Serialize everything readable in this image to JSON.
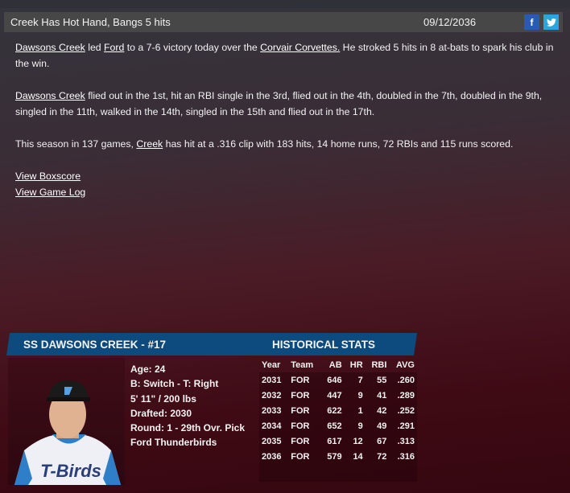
{
  "article": {
    "title": "Creek Has Hot Hand, Bangs 5 hits",
    "date": "09/12/2036",
    "p1": {
      "player": "Dawsons Creek",
      "t1": " led ",
      "team": "Ford",
      "t2": " to a 7-6 victory today over the ",
      "opp": "Corvair Corvettes.",
      "t3": " He stroked 5 hits in 8 at-bats to spark his club in the win."
    },
    "p2": {
      "player": "Dawsons Creek",
      "t1": " flied out in the 1st, hit an RBI single in the 3rd, flied out in the 4th, doubled in the 7th, doubled in the 9th, singled in the 11th, walked in the 14th, singled in the 15th and flied out in the 17th."
    },
    "p3": {
      "t1": "This season in 137 games, ",
      "player": "Creek",
      "t2": " has hit at a .316 clip with 183 hits, 14 home runs, 72 RBIs and 115 runs scored."
    },
    "links": [
      "View Boxscore",
      "View Game Log"
    ]
  },
  "social": {
    "facebook": "f",
    "twitter": "t"
  },
  "player": {
    "header": "SS DAWSONS CREEK - #17",
    "stats_header": "HISTORICAL STATS",
    "info": [
      "Age: 24",
      "B: Switch - T: Right",
      "5' 11\" / 200 lbs",
      "Drafted: 2030",
      "Round: 1 - 29th Ovr. Pick",
      "Ford Thunderbirds"
    ],
    "jersey_text": "T-Birds"
  },
  "stats": {
    "columns": [
      "Year",
      "Team",
      "AB",
      "HR",
      "RBI",
      "AVG"
    ],
    "rows": [
      [
        "2031",
        "FOR",
        "646",
        "7",
        "55",
        ".260"
      ],
      [
        "2032",
        "FOR",
        "447",
        "9",
        "41",
        ".289"
      ],
      [
        "2033",
        "FOR",
        "622",
        "1",
        "42",
        ".252"
      ],
      [
        "2034",
        "FOR",
        "652",
        "9",
        "49",
        ".291"
      ],
      [
        "2035",
        "FOR",
        "617",
        "12",
        "67",
        ".313"
      ],
      [
        "2036",
        "FOR",
        "579",
        "14",
        "72",
        ".316"
      ]
    ]
  },
  "colors": {
    "header_blue": "#0d4a7d",
    "facebook": "#2a5bb4",
    "twitter": "#2aa6dd"
  }
}
